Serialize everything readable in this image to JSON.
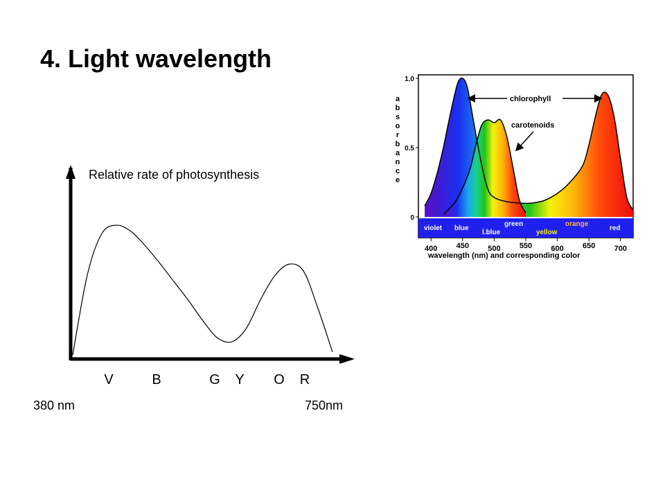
{
  "slide": {
    "title": "4. Light wavelength"
  },
  "chart_data": [
    {
      "type": "line",
      "ylabel": "Relative rate of photosynthesis",
      "color_labels": [
        "V",
        "B",
        "G",
        "Y",
        "O",
        "R"
      ],
      "x_start_label": "380 nm",
      "x_end_label": "750nm",
      "x": [
        380,
        400,
        420,
        440,
        460,
        480,
        500,
        520,
        540,
        560,
        580,
        600,
        620,
        640,
        660,
        680,
        700,
        720,
        740
      ],
      "y": [
        0.0,
        0.55,
        0.84,
        0.9,
        0.86,
        0.76,
        0.64,
        0.51,
        0.38,
        0.24,
        0.12,
        0.09,
        0.18,
        0.38,
        0.55,
        0.63,
        0.58,
        0.32,
        0.02
      ],
      "ylim": [
        0,
        1
      ],
      "grid": false,
      "line_color": "#000000"
    },
    {
      "type": "line",
      "ylabel": "absorbance",
      "xlabel": "wavelength (nm) and corresponding color",
      "xticks": [
        "400",
        "450",
        "500",
        "550",
        "600",
        "650",
        "700"
      ],
      "yticks": [
        "0",
        "0.5",
        "1.0"
      ],
      "xlim": [
        380,
        720
      ],
      "ylim": [
        0,
        1
      ],
      "grid": false,
      "series": [
        {
          "name": "chlorophyll",
          "x": [
            390,
            400,
            410,
            420,
            430,
            440,
            445,
            450,
            455,
            460,
            470,
            480,
            490,
            500,
            520,
            540,
            560,
            580,
            600,
            620,
            640,
            650,
            660,
            670,
            680,
            690,
            700,
            710,
            720
          ],
          "y": [
            0.08,
            0.17,
            0.32,
            0.51,
            0.73,
            0.93,
            0.99,
            1.0,
            0.97,
            0.88,
            0.62,
            0.38,
            0.2,
            0.14,
            0.11,
            0.1,
            0.1,
            0.12,
            0.17,
            0.25,
            0.37,
            0.52,
            0.72,
            0.88,
            0.88,
            0.72,
            0.42,
            0.14,
            0.05
          ]
        },
        {
          "name": "carotenoids",
          "x": [
            420,
            440,
            460,
            470,
            480,
            490,
            500,
            510,
            520,
            530,
            540,
            550
          ],
          "y": [
            0.02,
            0.12,
            0.32,
            0.5,
            0.66,
            0.7,
            0.68,
            0.7,
            0.58,
            0.35,
            0.12,
            0.03
          ]
        }
      ],
      "spectrum_bands": [
        "violet",
        "blue",
        "l.blue",
        "green",
        "yellow",
        "orange",
        "red"
      ],
      "spectrum_colors": {
        "violet": "#6a1bbd",
        "blue": "#1533e8",
        "l.blue": "#18c6ee",
        "green": "#15c41b",
        "yellow": "#f5f20a",
        "orange": "#ff9d0a",
        "red": "#f51010"
      }
    }
  ]
}
